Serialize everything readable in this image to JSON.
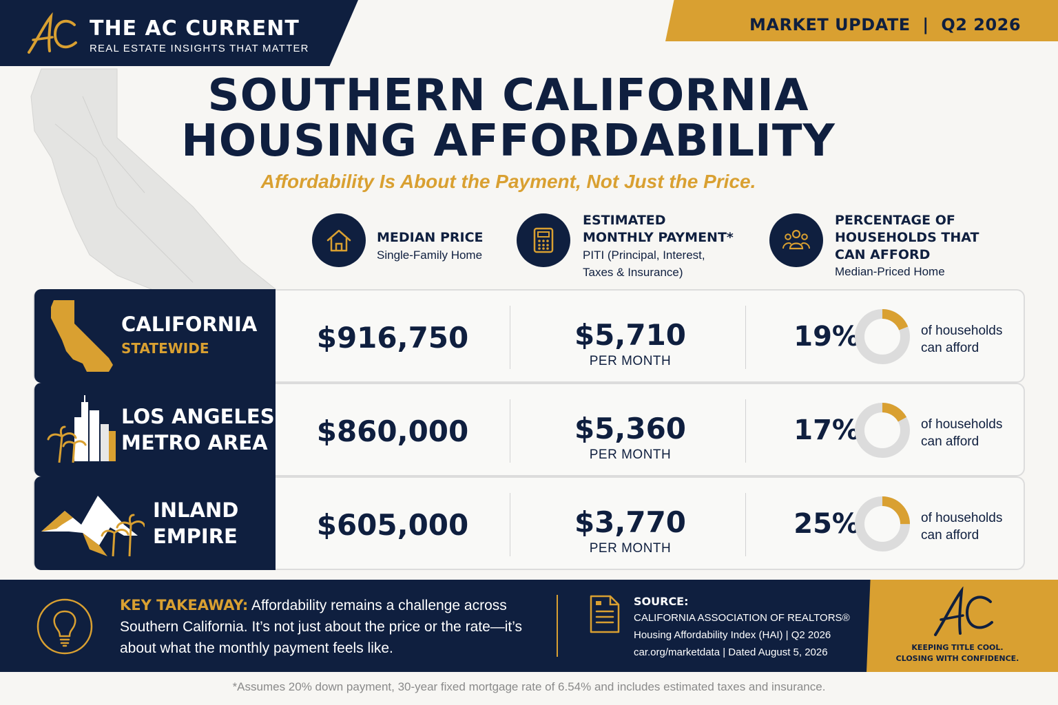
{
  "header": {
    "brand_title": "THE AC CURRENT",
    "brand_tagline": "REAL ESTATE INSIGHTS THAT MATTER",
    "logo_icon": "ac-monogram-icon",
    "market_update": "MARKET UPDATE  |  Q2 2026"
  },
  "title": {
    "line1": "SOUTHERN CALIFORNIA",
    "line2": "HOUSING AFFORDABILITY",
    "subtitle": "Affordability Is About the Payment, Not Just the Price."
  },
  "columns": [
    {
      "icon": "house-icon",
      "heading": [
        "MEDIAN PRICE"
      ],
      "sub": [
        "Single-Family Home"
      ]
    },
    {
      "icon": "calculator-icon",
      "heading": [
        "ESTIMATED",
        "MONTHLY PAYMENT*"
      ],
      "sub": [
        "PITI (Principal, Interest,",
        "Taxes & Insurance)"
      ]
    },
    {
      "icon": "people-icon",
      "heading": [
        "PERCENTAGE OF",
        "HOUSEHOLDS THAT",
        "CAN AFFORD"
      ],
      "sub": [
        "Median-Priced Home"
      ]
    }
  ],
  "rows": [
    {
      "icon": "california-state-icon",
      "name": [
        "CALIFORNIA"
      ],
      "sub": "STATEWIDE",
      "price": "$916,750",
      "payment": "$5,710",
      "per_month": "PER MONTH",
      "pct_label": "19%",
      "pct_value": 19,
      "afford": [
        "of households",
        "can afford"
      ]
    },
    {
      "icon": "city-skyline-icon",
      "name": [
        "LOS ANGELES",
        "METRO AREA"
      ],
      "sub": "",
      "price": "$860,000",
      "payment": "$5,360",
      "per_month": "PER MONTH",
      "pct_label": "17%",
      "pct_value": 17,
      "afford": [
        "of households",
        "can afford"
      ]
    },
    {
      "icon": "mountains-palms-icon",
      "name": [
        "INLAND",
        "EMPIRE"
      ],
      "sub": "",
      "price": "$605,000",
      "payment": "$3,770",
      "per_month": "PER MONTH",
      "pct_label": "25%",
      "pct_value": 25,
      "afford": [
        "of households",
        "can afford"
      ]
    }
  ],
  "footer": {
    "takeaway_label": "KEY TAKEAWAY:",
    "takeaway_text": " Affordability remains a challenge across Southern California. It’s not just about the price or the rate—it’s about what the monthly payment feels like.",
    "source_label": "SOURCE:",
    "source_lines": [
      "CALIFORNIA ASSOCIATION OF REALTORS®",
      "Housing Affordability Index (HAI) | Q2 2026",
      "car.org/marketdata | Dated August 5, 2026"
    ],
    "tag_line1": "KEEPING TITLE COOL.",
    "tag_line2": "CLOSING WITH CONFIDENCE."
  },
  "footnote": "*Assumes 20% down payment, 30-year fixed mortgage rate of 6.54% and includes estimated taxes and insurance.",
  "colors": {
    "navy": "#0f1f3f",
    "gold": "#d9a031",
    "donut_track": "#dcdcdc"
  }
}
